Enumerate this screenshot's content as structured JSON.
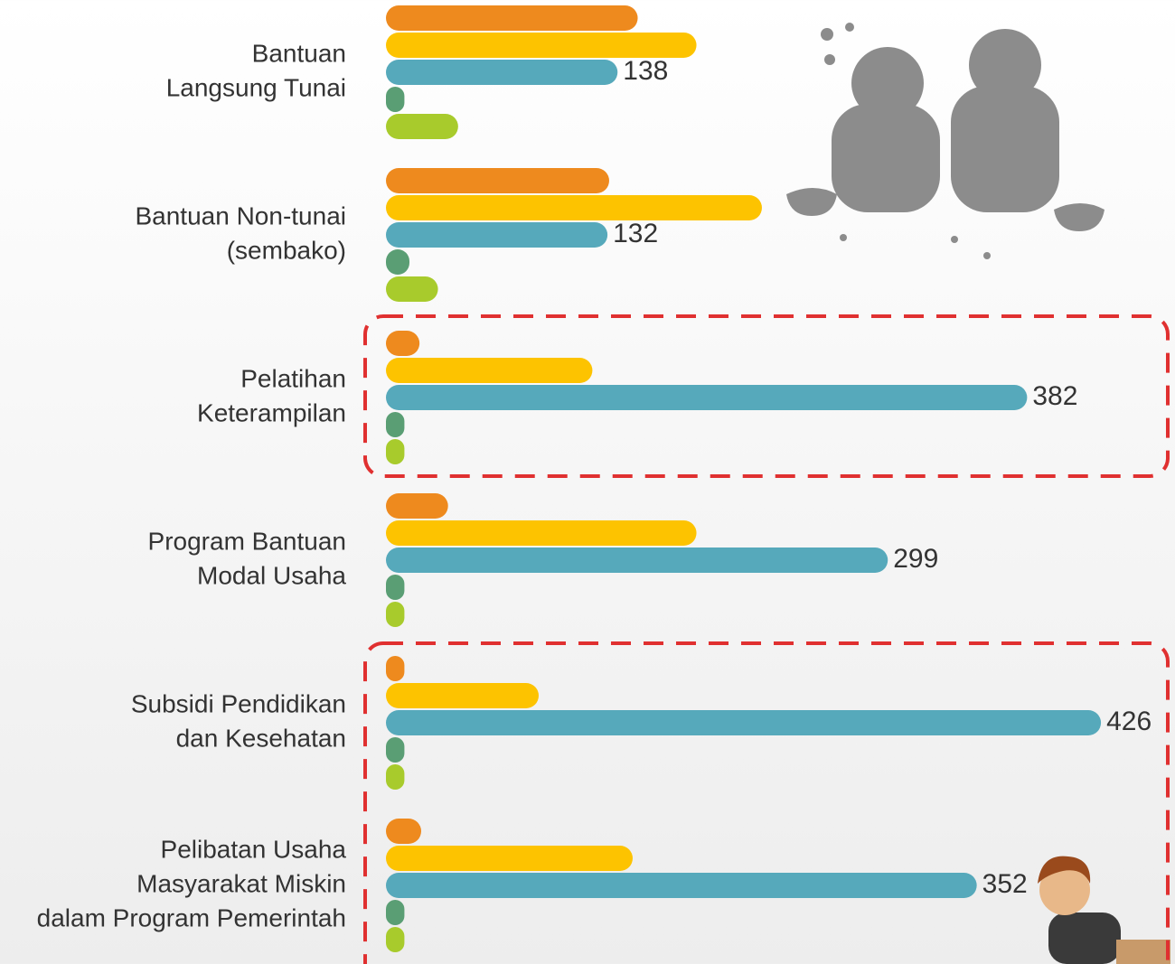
{
  "chart_data": {
    "type": "hbar-grouped",
    "categories": [
      [
        "Bantuan",
        "Langsung Tunai"
      ],
      [
        "Bantuan Non-tunai",
        "(sembako)"
      ],
      [
        "Pelatihan",
        "Keterampilan"
      ],
      [
        "Program Bantuan",
        "Modal Usaha"
      ],
      [
        "Subsidi Pendidikan",
        "dan Kesehatan"
      ],
      [
        "Pelibatan Usaha",
        "Masyarakat Miskin",
        "dalam Program Pemerintah"
      ]
    ],
    "series": [
      {
        "color": "#ee8a1e",
        "values": [
          150,
          133,
          20,
          37,
          11,
          21
        ]
      },
      {
        "color": "#fdc300",
        "values": [
          185,
          224,
          123,
          185,
          91,
          147
        ]
      },
      {
        "color": "#56a9bb",
        "values": [
          138,
          132,
          382,
          299,
          426,
          352
        ],
        "value_labels": [
          "138",
          "132",
          "382",
          "299",
          "426",
          "352"
        ]
      },
      {
        "color": "#5a9e74",
        "values": [
          11,
          14,
          11,
          11,
          11,
          11
        ]
      },
      {
        "color": "#a8cb2c",
        "values": [
          43,
          31,
          11,
          11,
          11,
          11
        ]
      }
    ]
  }
}
